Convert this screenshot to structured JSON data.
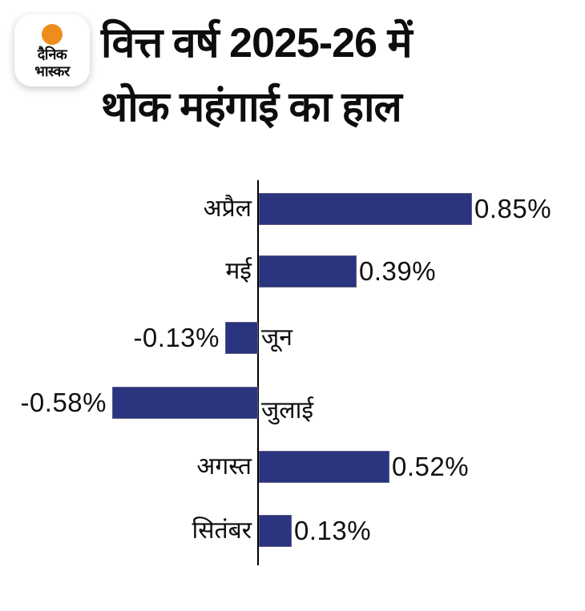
{
  "logo": {
    "name": "Dainik Bhaskar",
    "line1": "दैनिक",
    "line2": "भास्कर",
    "dot_color": "#ef8c1e"
  },
  "title": {
    "line1": "वित्त वर्ष 2025-26 में",
    "line2": "थोक महंगाई का हाल"
  },
  "chart_data": {
    "type": "bar",
    "orientation": "horizontal",
    "title": "वित्त वर्ष 2025-26 में थोक महंगाई का हाल",
    "categories": [
      "अप्रैल",
      "मई",
      "जून",
      "जुलाई",
      "अगस्त",
      "सितंबर"
    ],
    "values": [
      0.85,
      0.39,
      -0.13,
      -0.58,
      0.52,
      0.13
    ],
    "value_labels": [
      "0.85%",
      "0.39%",
      "-0.13%",
      "-0.58%",
      "0.52%",
      "0.13%"
    ],
    "unit": "%",
    "xlim": [
      -0.58,
      0.85
    ],
    "bar_color": "#2b347e",
    "axis_color": "#000000",
    "text_color": "#0d0d0d",
    "background": "#ffffff",
    "grid": false,
    "legend": false
  }
}
